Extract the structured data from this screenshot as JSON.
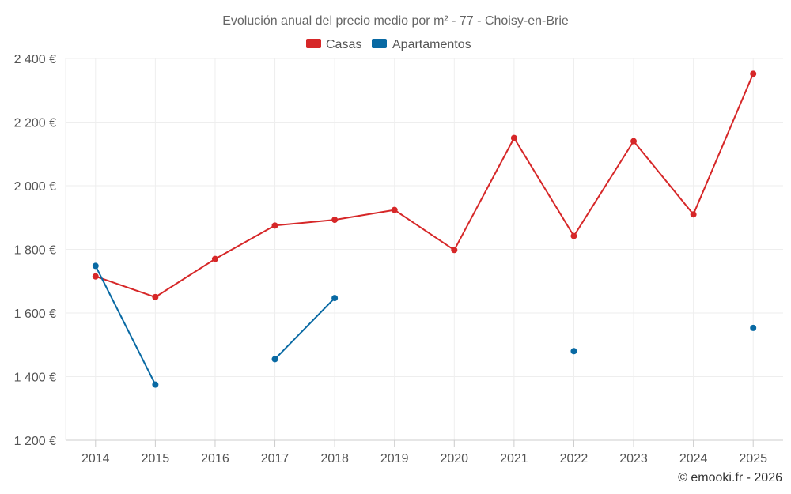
{
  "chart_data": {
    "type": "line",
    "title": "Evolución anual del precio medio por m² - 77 - Choisy-en-Brie",
    "categories": [
      "2014",
      "2015",
      "2016",
      "2017",
      "2018",
      "2019",
      "2020",
      "2021",
      "2022",
      "2023",
      "2024",
      "2025"
    ],
    "series": [
      {
        "name": "Casas",
        "color": "#d62728",
        "values": [
          1715,
          1650,
          1770,
          1875,
          1893,
          1924,
          1798,
          2150,
          1842,
          2140,
          1910,
          2352
        ]
      },
      {
        "name": "Apartamentos",
        "color": "#0869a3",
        "values": [
          1748,
          1375,
          null,
          1455,
          1647,
          null,
          null,
          null,
          1480,
          null,
          null,
          1553
        ]
      }
    ],
    "ylim": [
      1200,
      2400
    ],
    "yticks": [
      1200,
      1400,
      1600,
      1800,
      2000,
      2200,
      2400
    ],
    "ytick_labels": [
      "1 200 €",
      "1 400 €",
      "1 600 €",
      "1 800 €",
      "2 000 €",
      "2 200 €",
      "2 400 €"
    ],
    "xlabel": "",
    "ylabel": "",
    "grid": true,
    "legend_position": "top-center",
    "credit": "© emooki.fr - 2026"
  }
}
